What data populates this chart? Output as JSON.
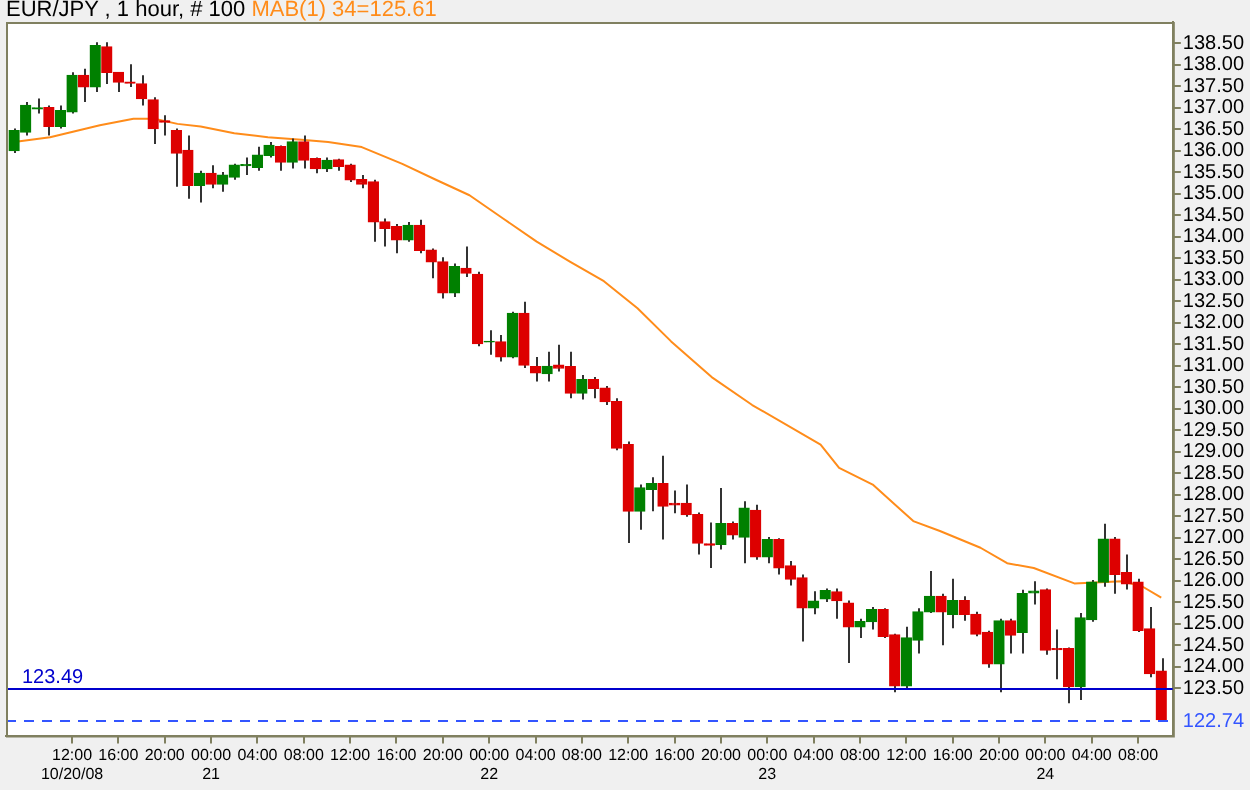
{
  "chart_data": {
    "type": "candlestick",
    "title": "EUR/JPY , 1 hour, # 100",
    "x": [
      "--10-20T07:00",
      "--10-20T08:00",
      "--10-20T09:00",
      "--10-20T10:00",
      "--10-20T11:00",
      "--10-20T12:00",
      "--10-20T13:00",
      "--10-20T14:00",
      "--10-20T15:00",
      "--10-20T16:00",
      "--10-20T17:00",
      "--10-20T18:00",
      "--10-20T19:00",
      "--10-20T20:00",
      "--10-20T21:00",
      "--10-20T22:00",
      "--10-20T23:00",
      "--10-21T00:00",
      "--10-21T01:00",
      "--10-21T02:00",
      "--10-21T03:00",
      "--10-21T04:00",
      "--10-21T05:00",
      "--10-21T06:00",
      "--10-21T07:00",
      "--10-21T08:00",
      "--10-21T09:00",
      "--10-21T10:00",
      "--10-21T11:00",
      "--10-21T12:00",
      "--10-21T13:00",
      "--10-21T14:00",
      "--10-21T15:00",
      "--10-21T16:00",
      "--10-21T17:00",
      "--10-21T18:00",
      "--10-21T19:00",
      "--10-21T20:00",
      "--10-21T21:00",
      "--10-21T22:00",
      "--10-21T23:00",
      "--10-22T00:00",
      "--10-22T01:00",
      "--10-22T02:00",
      "--10-22T03:00",
      "--10-22T04:00",
      "--10-22T05:00",
      "--10-22T06:00",
      "--10-22T07:00",
      "--10-22T08:00",
      "--10-22T09:00",
      "--10-22T10:00",
      "--10-22T11:00",
      "--10-22T12:00",
      "--10-22T13:00",
      "--10-22T14:00",
      "--10-22T15:00",
      "--10-22T16:00",
      "--10-22T17:00",
      "--10-22T18:00",
      "--10-22T19:00",
      "--10-22T20:00",
      "--10-22T21:00",
      "--10-22T22:00",
      "--10-22T23:00",
      "--10-23T00:00",
      "--10-23T01:00",
      "--10-23T02:00",
      "--10-23T03:00",
      "--10-23T04:00",
      "--10-23T05:00",
      "--10-23T06:00",
      "--10-23T07:00",
      "--10-23T08:00",
      "--10-23T09:00",
      "--10-23T10:00",
      "--10-23T11:00",
      "--10-23T12:00",
      "--10-23T13:00",
      "--10-23T14:00",
      "--10-23T15:00",
      "--10-23T16:00",
      "--10-23T17:00",
      "--10-23T18:00",
      "--10-23T19:00",
      "--10-23T20:00",
      "--10-23T21:00",
      "--10-23T22:00",
      "--10-23T23:00",
      "--10-24T00:00",
      "--10-24T01:00",
      "--10-24T02:00",
      "--10-24T03:00",
      "--10-24T04:00",
      "--10-24T05:00",
      "--10-24T06:00",
      "--10-24T07:00",
      "--10-24T08:00",
      "--10-24T09:00",
      "--10-24T10:00"
    ],
    "ohlc": [
      [
        136.01,
        136.52,
        135.95,
        136.47
      ],
      [
        136.44,
        137.14,
        136.36,
        137.06
      ],
      [
        136.98,
        137.22,
        136.87,
        137.0
      ],
      [
        137.01,
        137.06,
        136.36,
        136.57
      ],
      [
        136.57,
        137.06,
        136.52,
        136.94
      ],
      [
        136.91,
        137.83,
        136.87,
        137.76
      ],
      [
        137.76,
        137.91,
        137.14,
        137.49
      ],
      [
        137.49,
        138.53,
        137.37,
        138.45
      ],
      [
        138.42,
        138.53,
        137.56,
        137.83
      ],
      [
        137.83,
        137.83,
        137.37,
        137.6
      ],
      [
        137.6,
        138.02,
        137.49,
        137.58
      ],
      [
        137.56,
        137.76,
        137.06,
        137.22
      ],
      [
        137.19,
        137.25,
        136.16,
        136.52
      ],
      [
        136.7,
        136.83,
        136.36,
        136.67
      ],
      [
        136.47,
        136.52,
        135.17,
        135.95
      ],
      [
        136.01,
        136.36,
        134.89,
        135.2
      ],
      [
        135.2,
        135.54,
        134.8,
        135.48
      ],
      [
        135.48,
        135.67,
        135.13,
        135.23
      ],
      [
        135.23,
        135.51,
        135.05,
        135.44
      ],
      [
        135.39,
        135.7,
        135.33,
        135.67
      ],
      [
        135.66,
        135.85,
        135.44,
        135.68
      ],
      [
        135.62,
        136.1,
        135.54,
        135.9
      ],
      [
        135.9,
        136.21,
        135.85,
        136.13
      ],
      [
        136.1,
        136.13,
        135.54,
        135.74
      ],
      [
        135.74,
        136.29,
        135.59,
        136.21
      ],
      [
        136.21,
        136.36,
        135.59,
        135.79
      ],
      [
        135.82,
        135.85,
        135.48,
        135.59
      ],
      [
        135.59,
        135.85,
        135.51,
        135.78
      ],
      [
        135.79,
        135.82,
        135.54,
        135.64
      ],
      [
        135.67,
        135.7,
        135.28,
        135.33
      ],
      [
        135.33,
        135.44,
        135.13,
        135.23
      ],
      [
        135.28,
        135.33,
        133.89,
        134.35
      ],
      [
        134.35,
        134.43,
        133.78,
        134.2
      ],
      [
        134.24,
        134.3,
        133.62,
        133.93
      ],
      [
        133.93,
        134.35,
        133.89,
        134.27
      ],
      [
        134.27,
        134.4,
        133.62,
        133.69
      ],
      [
        133.69,
        133.73,
        133.04,
        133.42
      ],
      [
        133.42,
        133.53,
        132.57,
        132.7
      ],
      [
        132.7,
        133.38,
        132.6,
        133.31
      ],
      [
        133.27,
        133.78,
        133.07,
        133.16
      ],
      [
        133.13,
        133.19,
        131.46,
        131.52
      ],
      [
        131.56,
        131.83,
        131.26,
        131.57
      ],
      [
        131.56,
        131.72,
        131.1,
        131.21
      ],
      [
        131.21,
        132.26,
        131.18,
        132.22
      ],
      [
        132.22,
        132.49,
        130.95,
        131.02
      ],
      [
        130.98,
        131.21,
        130.64,
        130.84
      ],
      [
        130.82,
        131.33,
        130.64,
        130.99
      ],
      [
        131.02,
        131.49,
        130.87,
        130.95
      ],
      [
        130.98,
        131.33,
        130.25,
        130.37
      ],
      [
        130.37,
        130.79,
        130.22,
        130.68
      ],
      [
        130.68,
        130.74,
        130.25,
        130.48
      ],
      [
        130.48,
        130.53,
        130.09,
        130.17
      ],
      [
        130.17,
        130.25,
        129.04,
        129.09
      ],
      [
        129.17,
        129.24,
        126.88,
        127.62
      ],
      [
        127.62,
        128.24,
        127.19,
        128.16
      ],
      [
        128.13,
        128.41,
        127.62,
        128.26
      ],
      [
        128.26,
        128.91,
        126.96,
        127.74
      ],
      [
        127.8,
        128.1,
        127.57,
        127.77
      ],
      [
        127.8,
        128.24,
        127.49,
        127.54
      ],
      [
        127.54,
        127.59,
        126.61,
        126.88
      ],
      [
        126.86,
        127.36,
        126.3,
        126.83
      ],
      [
        126.85,
        128.16,
        126.73,
        127.33
      ],
      [
        127.33,
        127.38,
        126.96,
        127.07
      ],
      [
        127.02,
        127.85,
        126.41,
        127.69
      ],
      [
        127.64,
        127.77,
        126.49,
        126.56
      ],
      [
        126.56,
        127.02,
        126.41,
        126.96
      ],
      [
        126.96,
        126.99,
        126.15,
        126.3
      ],
      [
        126.35,
        126.46,
        125.89,
        126.04
      ],
      [
        126.07,
        126.15,
        124.59,
        125.37
      ],
      [
        125.37,
        125.76,
        125.22,
        125.53
      ],
      [
        125.58,
        125.82,
        125.51,
        125.77
      ],
      [
        125.74,
        125.82,
        125.12,
        125.54
      ],
      [
        125.48,
        125.54,
        124.09,
        124.93
      ],
      [
        124.93,
        125.12,
        124.67,
        125.05
      ],
      [
        125.05,
        125.39,
        124.87,
        125.33
      ],
      [
        125.33,
        125.36,
        124.67,
        124.71
      ],
      [
        124.74,
        124.77,
        123.41,
        123.56
      ],
      [
        123.56,
        124.93,
        123.51,
        124.67
      ],
      [
        124.62,
        125.36,
        124.31,
        125.28
      ],
      [
        125.28,
        126.23,
        125.25,
        125.64
      ],
      [
        125.64,
        125.7,
        124.5,
        125.28
      ],
      [
        125.22,
        126.05,
        124.9,
        125.54
      ],
      [
        125.54,
        125.64,
        125.07,
        125.22
      ],
      [
        125.22,
        125.28,
        124.71,
        124.76
      ],
      [
        124.8,
        124.84,
        123.98,
        124.07
      ],
      [
        124.07,
        125.12,
        123.41,
        125.07
      ],
      [
        125.07,
        125.12,
        124.31,
        124.74
      ],
      [
        124.8,
        125.79,
        124.31,
        125.7
      ],
      [
        125.72,
        125.99,
        125.45,
        125.76
      ],
      [
        125.79,
        125.82,
        124.28,
        124.39
      ],
      [
        124.42,
        124.87,
        123.71,
        124.4
      ],
      [
        124.42,
        124.45,
        123.15,
        123.54
      ],
      [
        123.54,
        125.25,
        123.23,
        125.14
      ],
      [
        125.1,
        126.02,
        125.05,
        125.97
      ],
      [
        125.97,
        127.33,
        125.86,
        126.97
      ],
      [
        126.97,
        127.02,
        125.7,
        126.15
      ],
      [
        126.19,
        126.61,
        125.8,
        125.93
      ],
      [
        125.97,
        126.05,
        124.81,
        124.85
      ],
      [
        124.88,
        125.39,
        123.76,
        123.84
      ],
      [
        123.9,
        124.2,
        122.74,
        122.77
      ]
    ],
    "series": [
      {
        "name": "MAB(1) 34=125.61",
        "type": "line",
        "color": "#ff8c1a",
        "x": [
          "--10-20T07:00",
          "--10-20T10:06",
          "--10-20T14:24",
          "--10-20T17:18",
          "--10-20T19:06",
          "--10-20T21:06",
          "--10-20T23:06",
          "--10-21T02:00",
          "--10-21T04:54",
          "--10-21T07:48",
          "--10-21T10:06",
          "--10-21T13:00",
          "--10-21T16:30",
          "--10-21T19:24",
          "--10-21T22:18",
          "--10-22T01:12",
          "--10-22T04:06",
          "--10-22T07:00",
          "--10-22T09:54",
          "--10-22T12:48",
          "--10-22T15:42",
          "--10-22T19:12",
          "--10-22T22:42",
          "--10-23T04:36",
          "--10-23T06:12",
          "--10-23T09:06",
          "--10-23T12:36",
          "--10-23T14:54",
          "--10-23T18:24",
          "--10-23T20:42",
          "--10-23T23:00",
          "--10-24T02:30",
          "--10-24T06:36",
          "--10-24T08:18",
          "--10-24T10:00"
        ],
        "values": [
          136.21,
          136.32,
          136.6,
          136.75,
          136.75,
          136.63,
          136.57,
          136.41,
          136.32,
          136.26,
          136.21,
          136.09,
          135.7,
          135.33,
          134.97,
          134.43,
          133.89,
          133.42,
          132.97,
          132.34,
          131.57,
          130.74,
          130.09,
          129.17,
          128.63,
          128.24,
          127.39,
          127.16,
          126.77,
          126.41,
          126.3,
          125.94,
          125.99,
          125.88,
          125.61
        ]
      }
    ],
    "xlim": [
      "--10-20T06:18",
      "--10-24T11:00"
    ],
    "xticks": [
      {
        "value": "--10-20T12:00",
        "label": "12:00\n10/20/08"
      },
      {
        "value": "--10-20T16:00",
        "label": "16:00"
      },
      {
        "value": "--10-20T20:00",
        "label": "20:00"
      },
      {
        "value": "--10-21T00:00",
        "label": "00:00\n21"
      },
      {
        "value": "--10-21T04:00",
        "label": "04:00"
      },
      {
        "value": "--10-21T08:00",
        "label": "08:00"
      },
      {
        "value": "--10-21T12:00",
        "label": "12:00"
      },
      {
        "value": "--10-21T16:00",
        "label": "16:00"
      },
      {
        "value": "--10-21T20:00",
        "label": "20:00"
      },
      {
        "value": "--10-22T00:00",
        "label": "00:00\n22"
      },
      {
        "value": "--10-22T04:00",
        "label": "04:00"
      },
      {
        "value": "--10-22T08:00",
        "label": "08:00"
      },
      {
        "value": "--10-22T12:00",
        "label": "12:00"
      },
      {
        "value": "--10-22T16:00",
        "label": "16:00"
      },
      {
        "value": "--10-22T20:00",
        "label": "20:00"
      },
      {
        "value": "--10-23T00:00",
        "label": "00:00\n23"
      },
      {
        "value": "--10-23T04:00",
        "label": "04:00"
      },
      {
        "value": "--10-23T08:00",
        "label": "08:00"
      },
      {
        "value": "--10-23T12:00",
        "label": "12:00"
      },
      {
        "value": "--10-23T16:00",
        "label": "16:00"
      },
      {
        "value": "--10-23T20:00",
        "label": "20:00"
      },
      {
        "value": "--10-24T00:00",
        "label": "00:00\n24"
      },
      {
        "value": "--10-24T04:00",
        "label": "04:00"
      },
      {
        "value": "--10-24T08:00",
        "label": "08:00"
      }
    ],
    "ylim": [
      122.4,
      139
    ],
    "yticks": [
      {
        "value": 123.5,
        "label": "123.50"
      },
      {
        "value": 124,
        "label": "124.00"
      },
      {
        "value": 124.5,
        "label": "124.50"
      },
      {
        "value": 125,
        "label": "125.00"
      },
      {
        "value": 125.5,
        "label": "125.50"
      },
      {
        "value": 126,
        "label": "126.00"
      },
      {
        "value": 126.5,
        "label": "126.50"
      },
      {
        "value": 127,
        "label": "127.00"
      },
      {
        "value": 127.5,
        "label": "127.50"
      },
      {
        "value": 128,
        "label": "128.00"
      },
      {
        "value": 128.5,
        "label": "128.50"
      },
      {
        "value": 129,
        "label": "129.00"
      },
      {
        "value": 129.5,
        "label": "129.50"
      },
      {
        "value": 130,
        "label": "130.00"
      },
      {
        "value": 130.5,
        "label": "130.50"
      },
      {
        "value": 131,
        "label": "131.00"
      },
      {
        "value": 131.5,
        "label": "131.50"
      },
      {
        "value": 132,
        "label": "132.00"
      },
      {
        "value": 132.5,
        "label": "132.50"
      },
      {
        "value": 133,
        "label": "133.00"
      },
      {
        "value": 133.5,
        "label": "133.50"
      },
      {
        "value": 134,
        "label": "134.00"
      },
      {
        "value": 134.5,
        "label": "134.50"
      },
      {
        "value": 135,
        "label": "135.00"
      },
      {
        "value": 135.5,
        "label": "135.50"
      },
      {
        "value": 136,
        "label": "136.00"
      },
      {
        "value": 136.5,
        "label": "136.50"
      },
      {
        "value": 137,
        "label": "137.00"
      },
      {
        "value": 137.5,
        "label": "137.50"
      },
      {
        "value": 138,
        "label": "138.00"
      },
      {
        "value": 138.5,
        "label": "138.50"
      }
    ],
    "ref_lines": [
      {
        "axis": "y",
        "value": 123.49,
        "label": "123.49",
        "color": "#0000cc",
        "line_style": "solid"
      },
      {
        "axis": "y",
        "value": 122.74,
        "label": "122.74",
        "color": "#3355ff",
        "line_style": "dashed"
      }
    ],
    "legend": "top left"
  }
}
